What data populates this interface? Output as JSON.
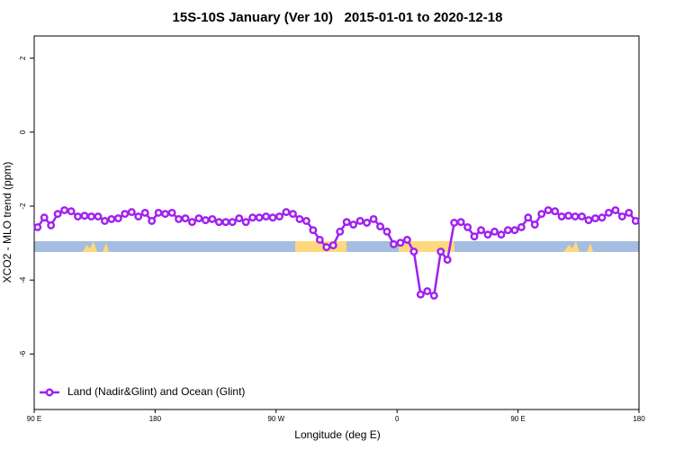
{
  "chart_data": {
    "type": "line",
    "title": "15S-10S January (Ver 10)   2015-01-01 to 2020-12-18",
    "xlabel": "Longitude (deg E)",
    "ylabel": "XCO2 - MLO trend (ppm)",
    "xlim": [
      90,
      540
    ],
    "xticks": [
      {
        "value": 90,
        "label": "90 E"
      },
      180,
      {
        "value": 270,
        "label": "90 W"
      },
      {
        "value": 360,
        "label": "0"
      },
      {
        "value": 450,
        "label": "90 E"
      },
      {
        "value": 540,
        "label": "180"
      }
    ],
    "ylim": [
      -7.5,
      2.6
    ],
    "yticks": [
      -6,
      -4,
      -2,
      0,
      2
    ],
    "legend": "bottom-left",
    "x": [
      92.5,
      97.5,
      102.5,
      107.5,
      112.5,
      117.5,
      122.5,
      127.5,
      132.5,
      137.5,
      142.5,
      147.5,
      152.5,
      157.5,
      162.5,
      167.5,
      172.5,
      177.5,
      182.5,
      187.5,
      192.5,
      197.5,
      202.5,
      207.5,
      212.5,
      217.5,
      222.5,
      227.5,
      232.5,
      237.5,
      242.5,
      247.5,
      252.5,
      257.5,
      262.5,
      267.5,
      272.5,
      277.5,
      282.5,
      287.5,
      292.5,
      297.5,
      302.5,
      307.5,
      312.5,
      317.5,
      322.5,
      327.5,
      332.5,
      337.5,
      342.5,
      347.5,
      352.5,
      357.5,
      362.5,
      367.5,
      372.5,
      377.5,
      382.5,
      387.5,
      392.5,
      397.5,
      402.5,
      407.5,
      412.5,
      417.5,
      422.5,
      427.5,
      432.5,
      437.5,
      442.5,
      447.5,
      452.5,
      457.5,
      462.5,
      467.5,
      472.5,
      477.5,
      482.5,
      487.5,
      492.5,
      497.5,
      502.5,
      507.5,
      512.5,
      517.5,
      522.5,
      527.5,
      532.5,
      537.5
    ],
    "series": [
      {
        "name": "Land (Nadir&Glint) and Ocean (Glint)",
        "color": "#a020f0",
        "values": [
          -2.57,
          -2.31,
          -2.52,
          -2.21,
          -2.11,
          -2.14,
          -2.28,
          -2.26,
          -2.28,
          -2.28,
          -2.4,
          -2.35,
          -2.33,
          -2.21,
          -2.16,
          -2.28,
          -2.18,
          -2.4,
          -2.18,
          -2.21,
          -2.18,
          -2.35,
          -2.33,
          -2.43,
          -2.33,
          -2.38,
          -2.35,
          -2.43,
          -2.43,
          -2.43,
          -2.33,
          -2.43,
          -2.31,
          -2.31,
          -2.28,
          -2.31,
          -2.28,
          -2.16,
          -2.21,
          -2.35,
          -2.4,
          -2.65,
          -2.91,
          -3.11,
          -3.06,
          -2.69,
          -2.43,
          -2.5,
          -2.4,
          -2.45,
          -2.35,
          -2.55,
          -2.69,
          -3.03,
          -2.99,
          -2.91,
          -3.23,
          -4.39,
          -4.3,
          -4.42,
          -3.23,
          -3.45,
          -2.45,
          -2.43,
          -2.57,
          -2.82,
          -2.65,
          -2.77,
          -2.69,
          -2.77,
          -2.65,
          -2.65,
          -2.57,
          -2.31,
          -2.5,
          -2.21,
          -2.11,
          -2.14,
          -2.28,
          -2.26,
          -2.28,
          -2.28,
          -2.38,
          -2.33,
          -2.31,
          -2.18,
          -2.11,
          -2.28,
          -2.18,
          -2.4
        ]
      }
    ]
  }
}
